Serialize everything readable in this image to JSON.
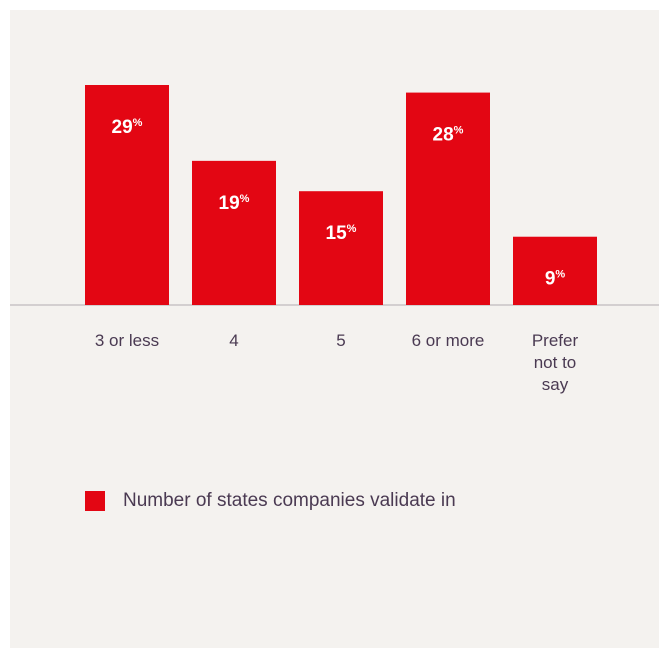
{
  "colors": {
    "bar": "#e30613",
    "baseline": "#c8c3c6",
    "text": "#4a3a52",
    "background": "#f4f2ef"
  },
  "chart_data": {
    "type": "bar",
    "categories": [
      "3 or less",
      "4",
      "5",
      "6 or more",
      "Prefer not to say"
    ],
    "category_lines": [
      [
        "3 or less"
      ],
      [
        "4"
      ],
      [
        "5"
      ],
      [
        "6 or more"
      ],
      [
        "Prefer",
        "not to",
        "say"
      ]
    ],
    "series": [
      {
        "name": "Number of states companies validate in",
        "values": [
          29,
          19,
          15,
          28,
          9
        ]
      }
    ],
    "value_suffix": "%",
    "ylim": [
      0,
      29
    ],
    "grid": false,
    "legend_position": "bottom-left",
    "title": "",
    "xlabel": "",
    "ylabel": ""
  }
}
